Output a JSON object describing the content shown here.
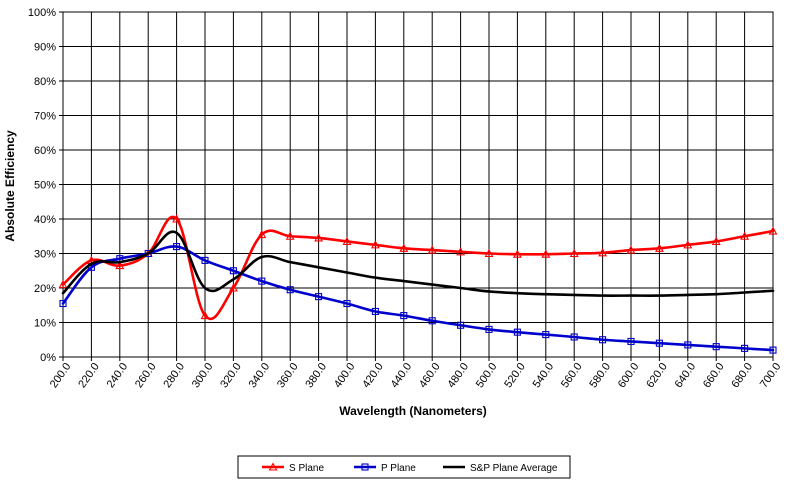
{
  "chart_data": {
    "type": "line",
    "title": "",
    "xlabel": "Wavelength (Nanometers)",
    "ylabel": "Absolute Efficiency",
    "x": [
      200,
      220,
      240,
      260,
      280,
      300,
      320,
      340,
      360,
      380,
      400,
      420,
      440,
      460,
      480,
      500,
      520,
      540,
      560,
      580,
      600,
      620,
      640,
      660,
      680,
      700
    ],
    "x_tick_labels": [
      "200.0",
      "220.0",
      "240.0",
      "260.0",
      "280.0",
      "300.0",
      "320.0",
      "340.0",
      "360.0",
      "380.0",
      "400.0",
      "420.0",
      "440.0",
      "460.0",
      "480.0",
      "500.0",
      "520.0",
      "540.0",
      "560.0",
      "580.0",
      "600.0",
      "620.0",
      "640.0",
      "660.0",
      "680.0",
      "700.0"
    ],
    "y_tick_labels": [
      "0%",
      "10%",
      "20%",
      "30%",
      "40%",
      "50%",
      "60%",
      "70%",
      "80%",
      "90%",
      "100%"
    ],
    "xlim": [
      200,
      700
    ],
    "ylim": [
      0,
      100
    ],
    "grid": true,
    "legend_position": "bottom",
    "series": [
      {
        "name": "S Plane",
        "color": "#ff0000",
        "marker": "triangle",
        "values": [
          21,
          28,
          26.5,
          30,
          40,
          12,
          20,
          35.5,
          35,
          34.5,
          33.5,
          32.5,
          31.5,
          31,
          30.5,
          30,
          29.8,
          29.8,
          30,
          30.2,
          31,
          31.5,
          32.5,
          33.5,
          35,
          36.5
        ]
      },
      {
        "name": "P Plane",
        "color": "#0000cc",
        "marker": "square",
        "values": [
          15.5,
          26,
          28.5,
          30,
          32,
          28,
          25,
          22,
          19.5,
          17.5,
          15.5,
          13.2,
          12,
          10.5,
          9.2,
          8,
          7.2,
          6.5,
          5.8,
          5,
          4.5,
          4,
          3.5,
          3,
          2.5,
          2
        ]
      },
      {
        "name": "S&P Plane Average",
        "color": "#000000",
        "marker": "none",
        "values": [
          18.5,
          27,
          27.5,
          30,
          36,
          20,
          22.5,
          29,
          27.5,
          26,
          24.5,
          23,
          22,
          21,
          20,
          19,
          18.5,
          18.2,
          18,
          17.8,
          17.8,
          17.8,
          18,
          18.2,
          18.7,
          19.2
        ]
      }
    ]
  }
}
